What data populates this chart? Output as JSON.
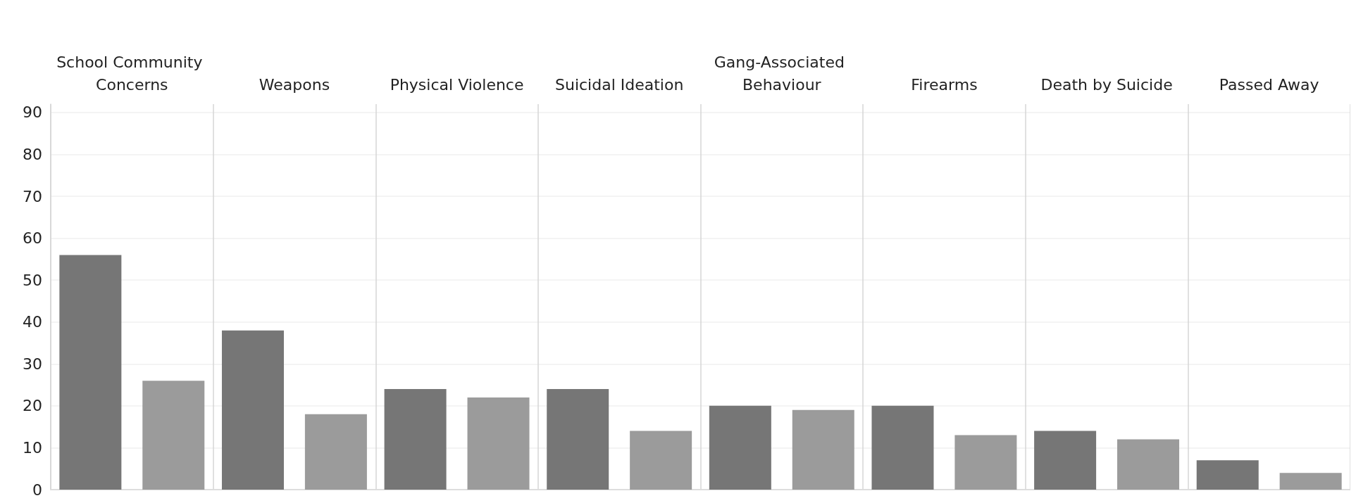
{
  "chart_data": {
    "type": "bar",
    "categories": [
      "School Community Concerns",
      "Weapons",
      "Physical Violence",
      "Suicidal Ideation",
      "Gang-Associated Behaviour",
      "Firearms",
      "Death by Suicide",
      "Passed Away"
    ],
    "series": [
      {
        "color": "#767676",
        "values": [
          56,
          38,
          24,
          24,
          20,
          20,
          14,
          7
        ]
      },
      {
        "color": "#9b9b9b",
        "values": [
          26,
          18,
          22,
          14,
          19,
          13,
          12,
          4
        ]
      }
    ],
    "ylim": [
      0,
      92
    ],
    "yticks": [
      0,
      10,
      20,
      30,
      40,
      50,
      60,
      70,
      80,
      90
    ],
    "grid": true
  }
}
